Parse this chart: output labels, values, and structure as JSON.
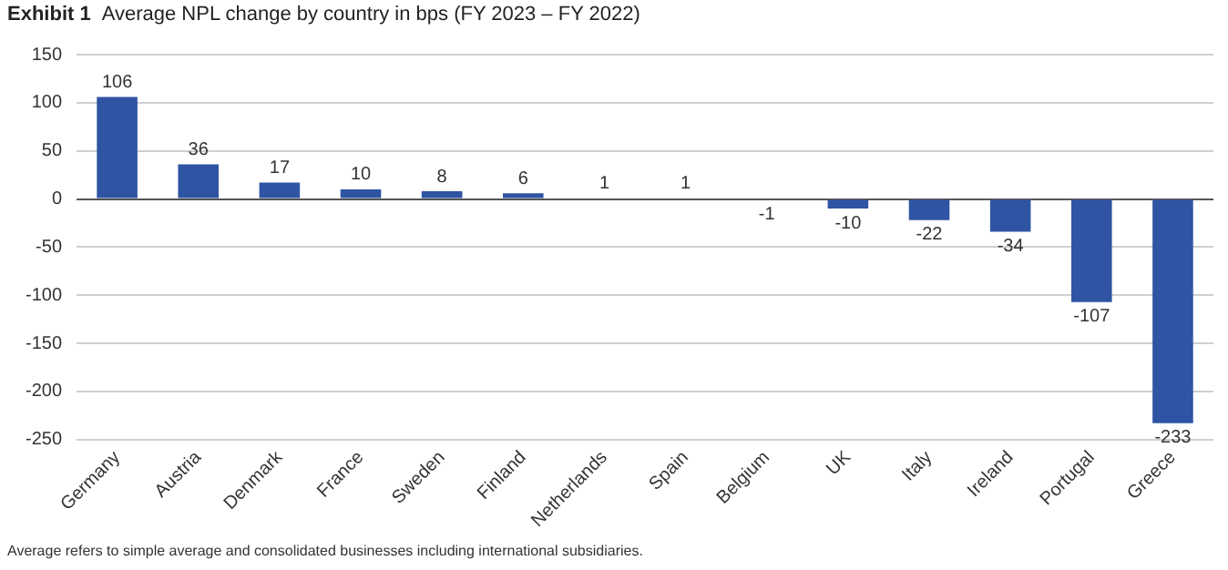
{
  "chart_data": {
    "type": "bar",
    "title": "Exhibit 1",
    "subtitle": "Average NPL change by country in bps (FY 2023 – FY 2022)",
    "categories": [
      "Germany",
      "Austria",
      "Denmark",
      "France",
      "Sweden",
      "Finland",
      "Netherlands",
      "Spain",
      "Belgium",
      "UK",
      "Italy",
      "Ireland",
      "Portugal",
      "Greece"
    ],
    "values": [
      106,
      36,
      17,
      10,
      8,
      6,
      1,
      1,
      -1,
      -10,
      -22,
      -34,
      -107,
      -233
    ],
    "color": "#2e54a3",
    "ylim": [
      -250,
      150
    ],
    "yticks": [
      -250,
      -200,
      -150,
      -100,
      -50,
      0,
      50,
      100,
      150
    ],
    "grid": "y",
    "data_labels": true,
    "annotations": [
      "Average refers to simple average and consolidated businesses including international subsidiaries."
    ]
  }
}
